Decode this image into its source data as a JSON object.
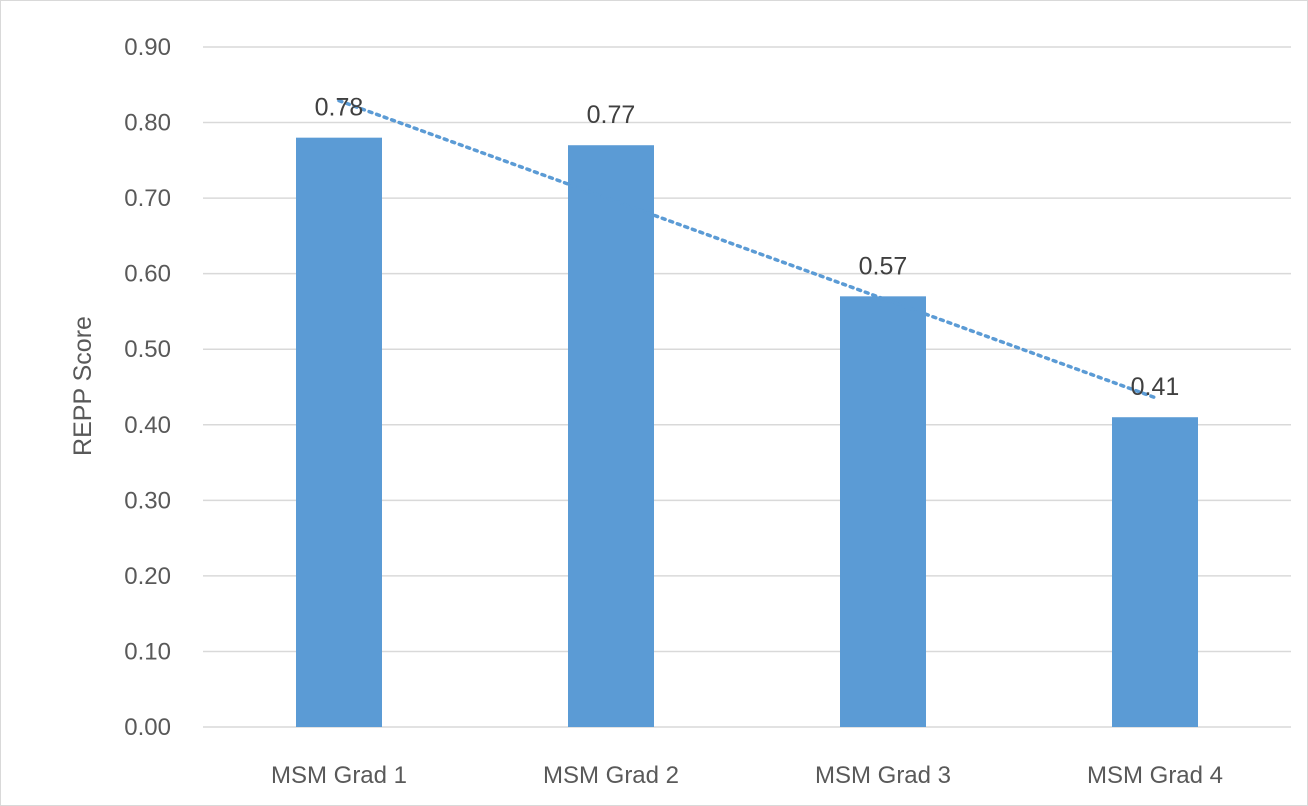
{
  "chart_data": {
    "type": "bar",
    "categories": [
      "MSM Grad 1",
      "MSM Grad 2",
      "MSM Grad 3",
      "MSM Grad 4"
    ],
    "values": [
      0.78,
      0.77,
      0.57,
      0.41
    ],
    "data_labels": [
      "0.78",
      "0.77",
      "0.57",
      "0.41"
    ],
    "title": "",
    "xlabel": "",
    "ylabel": "REPP Score",
    "ylim": [
      0,
      0.9
    ],
    "yticks": [
      "0.00",
      "0.10",
      "0.20",
      "0.30",
      "0.40",
      "0.50",
      "0.60",
      "0.70",
      "0.80",
      "0.90"
    ],
    "grid": true,
    "legend": "none",
    "trendline": {
      "type": "linear",
      "style": "dotted"
    },
    "colors": {
      "bar": "#5b9bd5",
      "trendline": "#5b9bd5",
      "grid": "#d9d9d9",
      "text": "#595959"
    }
  }
}
